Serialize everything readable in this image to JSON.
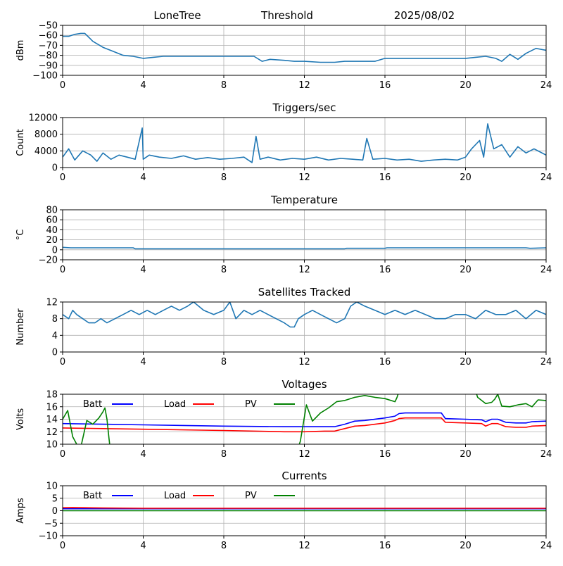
{
  "header": {
    "site": "LoneTree",
    "mode": "Threshold",
    "date": "2025/08/02"
  },
  "colors": {
    "series": "#1f77b4",
    "batt": "#0000ff",
    "load": "#ff0000",
    "pv": "#008000",
    "grid": "#b0b0b0"
  },
  "chart_data": [
    {
      "id": "threshold",
      "type": "line",
      "title": "",
      "xlabel": "",
      "ylabel": "dBm",
      "xlim": [
        0,
        24
      ],
      "ylim": [
        -100,
        -50
      ],
      "grid": true,
      "xticks": [
        0,
        4,
        8,
        12,
        16,
        20,
        24
      ],
      "yticks": [
        -100,
        -90,
        -80,
        -70,
        -60,
        -50
      ],
      "series": [
        {
          "x": [
            0,
            0.3,
            0.6,
            0.9,
            1.1,
            1.3,
            1.5,
            2,
            2.5,
            3,
            3.5,
            4,
            4.5,
            5,
            6,
            7,
            8,
            9,
            9.5,
            9.9,
            10.3,
            11,
            11.5,
            12,
            12.8,
            13.5,
            14,
            15,
            15.5,
            16,
            17,
            18,
            19,
            20,
            20.5,
            21,
            21.5,
            21.8,
            22.2,
            22.6,
            23,
            23.5,
            24
          ],
          "y": [
            -61,
            -61,
            -59,
            -58,
            -58,
            -62,
            -66,
            -72,
            -76,
            -80,
            -81,
            -83,
            -82,
            -81,
            -81,
            -81,
            -81,
            -81,
            -81,
            -86,
            -84,
            -85,
            -86,
            -86,
            -87,
            -87,
            -86,
            -86,
            -86,
            -83,
            -83,
            -83,
            -83,
            -83,
            -82,
            -81,
            -83,
            -86,
            -79,
            -84,
            -78,
            -73,
            -75
          ]
        }
      ]
    },
    {
      "id": "triggers",
      "type": "line",
      "title": "Triggers/sec",
      "xlabel": "",
      "ylabel": "Count",
      "xlim": [
        0,
        24
      ],
      "ylim": [
        0,
        12000
      ],
      "grid": true,
      "xticks": [
        0,
        4,
        8,
        12,
        16,
        20,
        24
      ],
      "yticks": [
        0,
        4000,
        8000,
        12000
      ],
      "series": [
        {
          "x": [
            0,
            0.3,
            0.6,
            1,
            1.4,
            1.7,
            2,
            2.4,
            2.8,
            3.2,
            3.6,
            3.95,
            4,
            4.3,
            4.8,
            5.4,
            6,
            6.6,
            7.2,
            7.8,
            8.4,
            9,
            9.4,
            9.6,
            9.8,
            10.2,
            10.8,
            11.4,
            12,
            12.6,
            13.2,
            13.8,
            14.4,
            14.9,
            15.1,
            15.4,
            16,
            16.6,
            17.2,
            17.8,
            18.4,
            19,
            19.6,
            20,
            20.3,
            20.7,
            20.9,
            21.1,
            21.4,
            21.8,
            22.2,
            22.6,
            23,
            23.4,
            24
          ],
          "y": [
            2500,
            4500,
            1800,
            4000,
            3000,
            1500,
            3500,
            2000,
            3000,
            2500,
            2000,
            9500,
            2000,
            3000,
            2500,
            2200,
            2800,
            2000,
            2400,
            2000,
            2200,
            2500,
            1200,
            7500,
            2000,
            2500,
            1800,
            2200,
            2000,
            2500,
            1800,
            2200,
            2000,
            1800,
            7000,
            2000,
            2200,
            1800,
            2000,
            1500,
            1800,
            2000,
            1800,
            2500,
            4500,
            6500,
            2500,
            10500,
            4500,
            5500,
            2500,
            5000,
            3500,
            4500,
            3000
          ]
        }
      ]
    },
    {
      "id": "temperature",
      "type": "line",
      "title": "Temperature",
      "xlabel": "",
      "ylabel": "°C",
      "xlim": [
        0,
        24
      ],
      "ylim": [
        -20,
        80
      ],
      "grid": true,
      "xticks": [
        0,
        4,
        8,
        12,
        16,
        20,
        24
      ],
      "yticks": [
        -20,
        0,
        20,
        40,
        60,
        80
      ],
      "series": [
        {
          "x": [
            0,
            0.4,
            3.5,
            3.6,
            8,
            12,
            14,
            14.1,
            16,
            16.1,
            20,
            23,
            23.2,
            24
          ],
          "y": [
            5,
            4,
            4,
            2,
            2,
            2,
            2,
            3,
            3,
            4,
            4,
            4,
            3,
            4
          ]
        }
      ]
    },
    {
      "id": "satellites",
      "type": "line",
      "title": "Satellites Tracked",
      "xlabel": "",
      "ylabel": "Number",
      "xlim": [
        0,
        24
      ],
      "ylim": [
        0,
        12
      ],
      "grid": true,
      "xticks": [
        0,
        4,
        8,
        12,
        16,
        20,
        24
      ],
      "yticks": [
        0,
        4,
        8,
        12
      ],
      "series": [
        {
          "x": [
            0,
            0.3,
            0.5,
            0.7,
            1,
            1.3,
            1.6,
            1.9,
            2.2,
            2.6,
            3,
            3.4,
            3.8,
            4.2,
            4.6,
            5,
            5.4,
            5.8,
            6.2,
            6.5,
            7,
            7.5,
            8,
            8.3,
            8.6,
            9,
            9.4,
            9.8,
            10.2,
            10.6,
            11,
            11.3,
            11.5,
            11.7,
            12,
            12.4,
            12.8,
            13.2,
            13.6,
            14,
            14.3,
            14.6,
            15,
            15.5,
            16,
            16.5,
            17,
            17.5,
            18,
            18.5,
            19,
            19.5,
            20,
            20.5,
            21,
            21.5,
            22,
            22.5,
            23,
            23.5,
            24
          ],
          "y": [
            9,
            8,
            10,
            9,
            8,
            7,
            7,
            8,
            7,
            8,
            9,
            10,
            9,
            10,
            9,
            10,
            11,
            10,
            11,
            12,
            10,
            9,
            10,
            12,
            8,
            10,
            9,
            10,
            9,
            8,
            7,
            6,
            6,
            8,
            9,
            10,
            9,
            8,
            7,
            8,
            11,
            12,
            11,
            10,
            9,
            10,
            9,
            10,
            9,
            8,
            8,
            9,
            9,
            8,
            10,
            9,
            9,
            10,
            8,
            10,
            9
          ]
        }
      ]
    },
    {
      "id": "voltages",
      "type": "line",
      "title": "Voltages",
      "xlabel": "",
      "ylabel": "Volts",
      "xlim": [
        0,
        24
      ],
      "ylim": [
        10,
        18
      ],
      "grid": true,
      "xticks": [
        0,
        4,
        8,
        12,
        16,
        20,
        24
      ],
      "yticks": [
        10,
        12,
        14,
        16,
        18
      ],
      "legend": "top-left",
      "series": [
        {
          "name": "Batt",
          "color": "#0000ff",
          "x": [
            0,
            2,
            4,
            8,
            11,
            12,
            13,
            13.5,
            14,
            14.5,
            15,
            16,
            16.5,
            16.7,
            17,
            18,
            18.8,
            19,
            20,
            20.8,
            21,
            21.3,
            21.6,
            22,
            22.5,
            23,
            23.3,
            24
          ],
          "y": [
            13.3,
            13.2,
            13.1,
            12.9,
            12.8,
            12.8,
            12.8,
            12.8,
            13.2,
            13.7,
            13.8,
            14.2,
            14.5,
            14.9,
            15.0,
            15.0,
            15.0,
            14.1,
            14.0,
            13.9,
            13.6,
            14.0,
            14.0,
            13.5,
            13.4,
            13.4,
            13.6,
            13.7
          ]
        },
        {
          "name": "Load",
          "color": "#ff0000",
          "x": [
            0,
            2,
            4,
            8,
            11,
            12,
            13,
            13.5,
            14,
            14.5,
            15,
            16,
            16.5,
            16.7,
            17,
            18,
            18.8,
            19,
            20,
            20.8,
            21,
            21.3,
            21.6,
            22,
            22.5,
            23,
            23.3,
            24
          ],
          "y": [
            12.6,
            12.5,
            12.4,
            12.2,
            12.0,
            12.0,
            12.1,
            12.1,
            12.5,
            12.9,
            13.0,
            13.4,
            13.8,
            14.1,
            14.2,
            14.2,
            14.2,
            13.5,
            13.4,
            13.3,
            12.9,
            13.3,
            13.3,
            12.8,
            12.7,
            12.7,
            12.9,
            13.0
          ]
        },
        {
          "name": "PV",
          "color": "#008000",
          "x": [
            0,
            0.25,
            0.5,
            0.7,
            0.9,
            1.2,
            1.5,
            1.8,
            2.0,
            2.1,
            2.2,
            2.3,
            2.35,
            11.7,
            11.8,
            12.1,
            12.4,
            12.8,
            13.2,
            13.6,
            14,
            14.5,
            15,
            15.5,
            16,
            16.5,
            16.6,
            16.7,
            20.5,
            20.6,
            21.0,
            21.3,
            21.45,
            21.6,
            21.8,
            22.2,
            22.6,
            23,
            23.3,
            23.6,
            24
          ],
          "y": [
            14,
            15.4,
            11.2,
            10,
            9.5,
            13.8,
            13.2,
            14.2,
            15.2,
            15.8,
            14,
            11,
            9.5,
            9.5,
            10.5,
            16.3,
            13.7,
            15.0,
            15.8,
            16.8,
            17.0,
            17.5,
            17.8,
            17.5,
            17.3,
            16.8,
            17.5,
            18.5,
            18.5,
            17.5,
            16.5,
            16.7,
            17.2,
            18.0,
            16.1,
            16.0,
            16.3,
            16.5,
            16.0,
            17.1,
            17.0
          ]
        }
      ]
    },
    {
      "id": "currents",
      "type": "line",
      "title": "Currents",
      "xlabel": "",
      "ylabel": "Amps",
      "xlim": [
        0,
        24
      ],
      "ylim": [
        -10,
        10
      ],
      "grid": true,
      "xticks": [
        0,
        4,
        8,
        12,
        16,
        20,
        24
      ],
      "yticks": [
        -10,
        -5,
        0,
        5,
        10
      ],
      "legend": "top-left",
      "series": [
        {
          "name": "Batt",
          "color": "#0000ff",
          "x": [
            0,
            24
          ],
          "y": [
            0.8,
            0.8
          ]
        },
        {
          "name": "Load",
          "color": "#ff0000",
          "x": [
            0,
            0.5,
            2,
            4,
            8,
            12,
            16,
            20,
            24
          ],
          "y": [
            1.2,
            1.3,
            1.1,
            1.0,
            1.0,
            1.0,
            1.0,
            1.0,
            1.0
          ]
        },
        {
          "name": "PV",
          "color": "#008000",
          "x": [
            0,
            24
          ],
          "y": [
            0.0,
            0.0
          ]
        }
      ]
    }
  ]
}
